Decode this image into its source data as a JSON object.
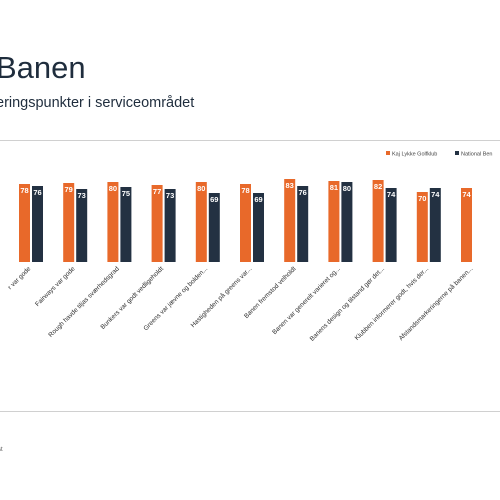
{
  "page": {
    "title": "Banen",
    "subtitle": "eringspunkter i serviceområdet",
    "footer": "st"
  },
  "colors": {
    "series1": "#e8692a",
    "series2": "#233142",
    "text": "#1f2d3d",
    "grid": "#e6e6e6"
  },
  "chart_data": {
    "type": "bar",
    "categories": [
      "r var gode",
      "Fairways var gode",
      "Rough havde tiljas sværhedsgrad",
      "Bunkers var godt vedligeholdt",
      "Greens var jævne og bolden...",
      "Hastigheden på greens var...",
      "Banen fremstod velholdt",
      "Banen var generelt varieret og...",
      "Banens design og tilstand gør det...",
      "Klubben informerer godt, hvis der...",
      "Afstandsmarkeringerne på banen..."
    ],
    "series": [
      {
        "name": "Kaj Lykke Golfklub",
        "values": [
          78,
          79,
          80,
          77,
          80,
          78,
          83,
          81,
          82,
          70,
          74
        ]
      },
      {
        "name": "National Ben",
        "values": [
          76,
          73,
          75,
          73,
          69,
          69,
          76,
          80,
          74,
          74,
          null
        ]
      }
    ],
    "ylim": [
      0,
      100
    ],
    "grid": false,
    "legend": "top-right",
    "xlabel": "",
    "ylabel": ""
  }
}
